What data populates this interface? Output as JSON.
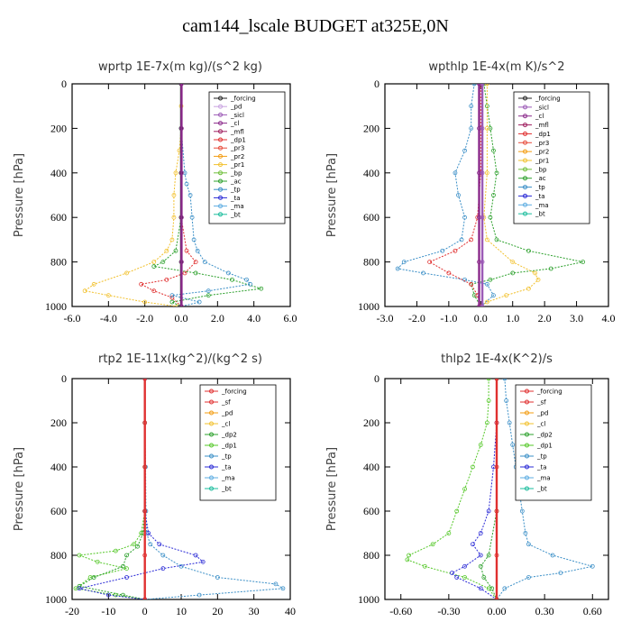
{
  "title": "cam144_lscale  BUDGET at325E,0N",
  "chart_data": [
    {
      "type": "line",
      "title": "wprtp   1E-7x(m kg)/(s^2 kg)",
      "ylabel": "Pressure [hPa]",
      "xlim": [
        -6,
        6
      ],
      "ylim": [
        1000,
        0
      ],
      "xticks": [
        "-6.0",
        "-4.0",
        "-2.0",
        "0.0",
        "2.0",
        "4.0",
        "6.0"
      ],
      "xtick_values": [
        -6,
        -4,
        -2,
        0,
        2,
        4,
        6
      ],
      "yticks": [
        "0",
        "200",
        "400",
        "600",
        "800",
        "1000"
      ],
      "ytick_values": [
        0,
        200,
        400,
        600,
        800,
        1000
      ],
      "legend": [
        "_forcing",
        "_pd",
        "_sicl",
        "_cl",
        "_mfl",
        "_dp1",
        "_pr3",
        "_pr2",
        "_pr1",
        "_bp",
        "_ac",
        "_tp",
        "_ta",
        "_ma",
        "_bt"
      ],
      "series": [
        {
          "name": "_pr1",
          "color": "#f2c12e",
          "y": [
            0,
            100,
            200,
            300,
            400,
            500,
            600,
            700,
            750,
            800,
            850,
            900,
            930,
            950,
            980,
            1000
          ],
          "x": [
            0,
            0,
            0,
            -0.1,
            -0.3,
            -0.4,
            -0.4,
            -0.5,
            -0.8,
            -1.5,
            -3.0,
            -4.8,
            -5.3,
            -4.0,
            -2.0,
            -0.2
          ]
        },
        {
          "name": "_dp1",
          "color": "#e03030",
          "y": [
            0,
            200,
            400,
            600,
            750,
            800,
            850,
            880,
            900,
            930,
            960,
            1000
          ],
          "x": [
            0,
            0,
            0,
            0,
            0.3,
            0.8,
            0.2,
            -0.8,
            -2.2,
            -1.5,
            -0.5,
            0
          ]
        },
        {
          "name": "_ac",
          "color": "#2ca02c",
          "y": [
            0,
            200,
            400,
            600,
            750,
            800,
            820,
            850,
            880,
            920,
            950,
            980,
            1000
          ],
          "x": [
            0,
            0,
            0,
            0,
            -0.3,
            -1.0,
            -1.5,
            0.8,
            2.8,
            4.4,
            1.5,
            -0.5,
            0
          ]
        },
        {
          "name": "_tp",
          "color": "#3b8fc7",
          "y": [
            0,
            200,
            400,
            450,
            500,
            600,
            700,
            750,
            800,
            850,
            880,
            900,
            930,
            950,
            980,
            1000
          ],
          "x": [
            0,
            0,
            0.2,
            0.3,
            0.5,
            0.6,
            0.7,
            0.9,
            1.3,
            2.6,
            3.6,
            3.8,
            1.5,
            -0.5,
            1.0,
            0
          ]
        },
        {
          "name": "_forcing",
          "color": "#222222",
          "y": [
            0,
            200,
            400,
            600,
            800,
            1000
          ],
          "x": [
            0,
            0,
            0,
            0,
            0,
            0
          ]
        },
        {
          "name": "_cl",
          "color": "#8b2a8b",
          "y": [
            0,
            200,
            400,
            600,
            800,
            1000
          ],
          "x": [
            0.02,
            0.02,
            0.02,
            0.02,
            0.02,
            0.02
          ]
        }
      ]
    },
    {
      "type": "line",
      "title": "wpthlp   1E-4x(m K)/s^2",
      "ylabel": "Pressure [hPa]",
      "xlim": [
        -3,
        4
      ],
      "ylim": [
        1000,
        0
      ],
      "xticks": [
        "-3.0",
        "-2.0",
        "-1.0",
        "0.0",
        "1.0",
        "2.0",
        "3.0",
        "4.0"
      ],
      "xtick_values": [
        -3,
        -2,
        -1,
        0,
        1,
        2,
        3,
        4
      ],
      "yticks": [
        "0",
        "200",
        "400",
        "600",
        "800",
        "1000"
      ],
      "ytick_values": [
        0,
        200,
        400,
        600,
        800,
        1000
      ],
      "legend": [
        "_forcing",
        "_sicl",
        "_cl",
        "_mfl",
        "_dp1",
        "_pr3",
        "_pr2",
        "_pr1",
        "_bp",
        "_ac",
        "_tp",
        "_ta",
        "_ma",
        "_bt"
      ],
      "series": [
        {
          "name": "_tp",
          "color": "#3b8fc7",
          "y": [
            0,
            100,
            200,
            300,
            400,
            500,
            600,
            700,
            750,
            800,
            830,
            850,
            880,
            900,
            950,
            1000
          ],
          "x": [
            -0.2,
            -0.3,
            -0.3,
            -0.5,
            -0.8,
            -0.7,
            -0.5,
            -0.6,
            -1.2,
            -2.4,
            -2.6,
            -1.8,
            -0.5,
            0.2,
            0.4,
            0
          ]
        },
        {
          "name": "_ac",
          "color": "#2ca02c",
          "y": [
            0,
            100,
            200,
            300,
            400,
            500,
            600,
            700,
            750,
            800,
            830,
            850,
            880,
            900,
            950,
            1000
          ],
          "x": [
            0.1,
            0.2,
            0.3,
            0.4,
            0.5,
            0.4,
            0.3,
            0.5,
            1.5,
            3.2,
            2.2,
            1.0,
            0.3,
            -0.3,
            -0.2,
            0
          ]
        },
        {
          "name": "_pr1",
          "color": "#f2c12e",
          "y": [
            0,
            200,
            400,
            600,
            700,
            800,
            850,
            880,
            920,
            950,
            980,
            1000
          ],
          "x": [
            0.2,
            0.2,
            0.2,
            0.1,
            0.2,
            1.0,
            1.7,
            1.8,
            1.5,
            0.8,
            0.2,
            0
          ]
        },
        {
          "name": "_dp1",
          "color": "#e03030",
          "y": [
            0,
            200,
            400,
            600,
            700,
            750,
            800,
            850,
            900,
            950,
            1000
          ],
          "x": [
            0,
            0,
            0,
            -0.1,
            -0.3,
            -0.8,
            -1.6,
            -1.0,
            -0.3,
            -0.1,
            0
          ]
        },
        {
          "name": "_cl",
          "color": "#8b2a8b",
          "y": [
            0,
            200,
            400,
            600,
            800,
            1000
          ],
          "x": [
            -0.05,
            -0.05,
            -0.05,
            -0.05,
            -0.05,
            -0.05
          ]
        },
        {
          "name": "_sicl",
          "color": "#9b59b6",
          "y": [
            0,
            200,
            400,
            600,
            800,
            1000
          ],
          "x": [
            0.05,
            0.05,
            0.05,
            0.05,
            0.05,
            0.05
          ]
        }
      ]
    },
    {
      "type": "line",
      "title": "rtp2   1E-11x(kg^2)/(kg^2 s)",
      "ylabel": "Pressure [hPa]",
      "xlim": [
        -20,
        40
      ],
      "ylim": [
        1000,
        0
      ],
      "xticks": [
        "-20",
        "-10",
        "0",
        "10",
        "20",
        "30",
        "40"
      ],
      "xtick_values": [
        -20,
        -10,
        0,
        10,
        20,
        30,
        40
      ],
      "yticks": [
        "0",
        "200",
        "400",
        "600",
        "800",
        "1000"
      ],
      "ytick_values": [
        0,
        200,
        400,
        600,
        800,
        1000
      ],
      "legend": [
        "_forcing",
        "_sf",
        "_pd",
        "_cl",
        "_dp2",
        "_dp1",
        "_tp",
        "_ta",
        "_ma",
        "_bt"
      ],
      "series": [
        {
          "name": "_dp1",
          "color": "#56c82a",
          "y": [
            0,
            200,
            400,
            600,
            700,
            750,
            780,
            800,
            830,
            860,
            900,
            950,
            980,
            1000
          ],
          "x": [
            0,
            0,
            0,
            0,
            -1,
            -3,
            -8,
            -18,
            -13,
            -5,
            -15,
            -19,
            -8,
            0
          ]
        },
        {
          "name": "_dp2",
          "color": "#2ca02c",
          "y": [
            0,
            600,
            700,
            760,
            800,
            850,
            900,
            940,
            980,
            1000
          ],
          "x": [
            0,
            0,
            -0.5,
            -2,
            -5,
            -6,
            -14,
            -18,
            -6,
            0
          ]
        },
        {
          "name": "_tp",
          "color": "#3b8fc7",
          "y": [
            0,
            200,
            400,
            600,
            700,
            750,
            800,
            850,
            900,
            930,
            950,
            980,
            1000
          ],
          "x": [
            0,
            0,
            0.2,
            0.3,
            0.5,
            1.5,
            5,
            10,
            20,
            36,
            38,
            15,
            0
          ]
        },
        {
          "name": "_ta",
          "color": "#2b2bd6",
          "y": [
            0,
            600,
            700,
            750,
            800,
            830,
            860,
            900,
            950,
            980,
            1000
          ],
          "x": [
            0,
            0,
            1,
            4,
            14,
            16,
            5,
            -5,
            -18,
            -10,
            0
          ]
        },
        {
          "name": "_forcing",
          "color": "#e03030",
          "y": [
            0,
            200,
            400,
            600,
            800,
            1000
          ],
          "x": [
            0,
            0,
            0,
            0,
            0,
            0
          ]
        }
      ]
    },
    {
      "type": "line",
      "title": "thlp2   1E-4x(K^2)/s",
      "ylabel": "Pressure [hPa]",
      "xlim": [
        -0.7,
        0.7
      ],
      "ylim": [
        1000,
        0
      ],
      "xticks": [
        "-0.60",
        "-0.30",
        "0.00",
        "0.30",
        "0.60"
      ],
      "xtick_values": [
        -0.6,
        -0.3,
        0,
        0.3,
        0.6
      ],
      "yticks": [
        "0",
        "200",
        "400",
        "600",
        "800",
        "1000"
      ],
      "ytick_values": [
        0,
        200,
        400,
        600,
        800,
        1000
      ],
      "legend": [
        "_forcing",
        "_sf",
        "_pd",
        "_cl",
        "_dp2",
        "_dp1",
        "_tp",
        "_ta",
        "_ma",
        "_bt"
      ],
      "series": [
        {
          "name": "_dp1",
          "color": "#56c82a",
          "y": [
            0,
            100,
            200,
            300,
            400,
            500,
            600,
            700,
            750,
            800,
            820,
            850,
            900,
            950,
            1000
          ],
          "x": [
            -0.05,
            -0.05,
            -0.06,
            -0.1,
            -0.15,
            -0.2,
            -0.25,
            -0.3,
            -0.4,
            -0.55,
            -0.56,
            -0.45,
            -0.2,
            -0.05,
            0
          ]
        },
        {
          "name": "_tp",
          "color": "#3b8fc7",
          "y": [
            0,
            100,
            200,
            300,
            400,
            500,
            600,
            700,
            750,
            800,
            850,
            880,
            900,
            950,
            1000
          ],
          "x": [
            0.05,
            0.06,
            0.08,
            0.1,
            0.12,
            0.14,
            0.16,
            0.18,
            0.2,
            0.35,
            0.6,
            0.4,
            0.2,
            0.05,
            0
          ]
        },
        {
          "name": "_ta",
          "color": "#2b2bd6",
          "y": [
            0,
            200,
            400,
            600,
            700,
            750,
            800,
            850,
            880,
            900,
            950,
            1000
          ],
          "x": [
            0,
            0,
            -0.02,
            -0.05,
            -0.1,
            -0.15,
            -0.1,
            -0.2,
            -0.28,
            -0.25,
            -0.1,
            0
          ]
        },
        {
          "name": "_dp2",
          "color": "#2ca02c",
          "y": [
            0,
            600,
            800,
            850,
            900,
            950,
            1000
          ],
          "x": [
            0,
            0,
            -0.05,
            -0.1,
            -0.08,
            -0.03,
            0
          ]
        },
        {
          "name": "_forcing",
          "color": "#e03030",
          "y": [
            0,
            200,
            400,
            600,
            800,
            1000
          ],
          "x": [
            0,
            0,
            0,
            0,
            0,
            0
          ]
        }
      ]
    }
  ]
}
